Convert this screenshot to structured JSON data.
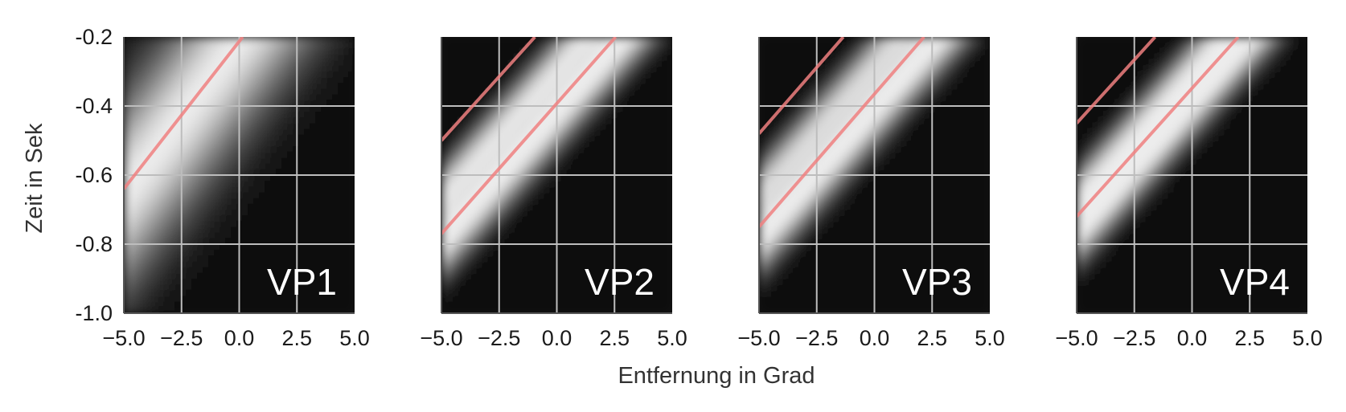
{
  "chart_data": {
    "type": "heatmap",
    "xlabel": "Entfernung in Grad",
    "ylabel": "Zeit in Sek",
    "xlim": [
      -5.0,
      5.0
    ],
    "ylim": [
      -1.0,
      -0.2
    ],
    "xticks": [
      "−5.0",
      "−2.5",
      "0.0",
      "2.5",
      "5.0"
    ],
    "yticks": [
      "-1.0",
      "-0.8",
      "-0.6",
      "-0.4",
      "-0.2"
    ],
    "xtick_values": [
      -5.0,
      -2.5,
      0.0,
      2.5,
      5.0
    ],
    "ytick_values": [
      -1.0,
      -0.8,
      -0.6,
      -0.4,
      -0.2
    ],
    "colormap": "grayscale",
    "grid": true,
    "line_color": "#f08080",
    "panels": [
      {
        "label": "VP1",
        "bands": [
          {
            "slope": 0.09,
            "intercept": -0.21,
            "width": 0.2,
            "strength": 1.0
          }
        ],
        "lines": [
          {
            "x": [
              -5.0,
              0.15
            ],
            "y": [
              -0.64,
              -0.2
            ]
          }
        ]
      },
      {
        "label": "VP2",
        "bands": [
          {
            "slope": 0.075,
            "intercept": -0.28,
            "width": 0.06,
            "strength": 0.85
          },
          {
            "slope": 0.075,
            "intercept": -0.43,
            "width": 0.07,
            "strength": 1.0
          }
        ],
        "lines": [
          {
            "x": [
              -5.0,
              -0.95
            ],
            "y": [
              -0.5,
              -0.2
            ]
          },
          {
            "x": [
              -5.0,
              2.55
            ],
            "y": [
              -0.77,
              -0.2
            ]
          }
        ]
      },
      {
        "label": "VP3",
        "bands": [
          {
            "slope": 0.075,
            "intercept": -0.27,
            "width": 0.06,
            "strength": 0.8
          },
          {
            "slope": 0.075,
            "intercept": -0.42,
            "width": 0.07,
            "strength": 1.0
          }
        ],
        "lines": [
          {
            "x": [
              -5.0,
              -1.35
            ],
            "y": [
              -0.48,
              -0.2
            ]
          },
          {
            "x": [
              -5.0,
              2.15
            ],
            "y": [
              -0.75,
              -0.2
            ]
          }
        ]
      },
      {
        "label": "VP4",
        "bands": [
          {
            "slope": 0.075,
            "intercept": -0.28,
            "width": 0.055,
            "strength": 0.75
          },
          {
            "slope": 0.075,
            "intercept": -0.4,
            "width": 0.065,
            "strength": 1.0
          }
        ],
        "lines": [
          {
            "x": [
              -5.0,
              -1.6
            ],
            "y": [
              -0.45,
              -0.2
            ]
          },
          {
            "x": [
              -5.0,
              2.0
            ],
            "y": [
              -0.72,
              -0.2
            ]
          }
        ]
      }
    ]
  }
}
